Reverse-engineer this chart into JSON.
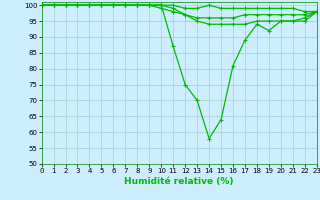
{
  "series": [
    {
      "x": [
        0,
        1,
        2,
        3,
        4,
        5,
        6,
        7,
        8,
        9,
        10,
        11,
        12,
        13,
        14,
        15,
        16,
        17,
        18,
        19,
        20,
        21,
        22,
        23
      ],
      "y": [
        100,
        100,
        100,
        100,
        100,
        100,
        100,
        100,
        100,
        100,
        100,
        100,
        99,
        99,
        100,
        99,
        99,
        99,
        99,
        99,
        99,
        99,
        98,
        98
      ]
    },
    {
      "x": [
        0,
        1,
        2,
        3,
        4,
        5,
        6,
        7,
        8,
        9,
        10,
        11,
        12,
        13,
        14,
        15,
        16,
        17,
        18,
        19,
        20,
        21,
        22,
        23
      ],
      "y": [
        100,
        100,
        100,
        100,
        100,
        100,
        100,
        100,
        100,
        100,
        99,
        98,
        97,
        96,
        96,
        96,
        96,
        97,
        97,
        97,
        97,
        97,
        97,
        98
      ]
    },
    {
      "x": [
        0,
        1,
        2,
        3,
        4,
        5,
        6,
        7,
        8,
        9,
        10,
        11,
        12,
        13,
        14,
        15,
        16,
        17,
        18,
        19,
        20,
        21,
        22,
        23
      ],
      "y": [
        100,
        100,
        100,
        100,
        100,
        100,
        100,
        100,
        100,
        100,
        100,
        87,
        75,
        70,
        58,
        64,
        81,
        89,
        94,
        92,
        95,
        95,
        96,
        98
      ]
    },
    {
      "x": [
        0,
        1,
        2,
        3,
        4,
        5,
        6,
        7,
        8,
        9,
        10,
        11,
        12,
        13,
        14,
        15,
        16,
        17,
        18,
        19,
        20,
        21,
        22,
        23
      ],
      "y": [
        100,
        100,
        100,
        100,
        100,
        100,
        100,
        100,
        100,
        100,
        100,
        99,
        97,
        95,
        94,
        94,
        94,
        94,
        95,
        95,
        95,
        95,
        95,
        98
      ]
    }
  ],
  "xlim": [
    0,
    23
  ],
  "ylim": [
    50,
    101
  ],
  "yticks": [
    50,
    55,
    60,
    65,
    70,
    75,
    80,
    85,
    90,
    95,
    100
  ],
  "xticks": [
    0,
    1,
    2,
    3,
    4,
    5,
    6,
    7,
    8,
    9,
    10,
    11,
    12,
    13,
    14,
    15,
    16,
    17,
    18,
    19,
    20,
    21,
    22,
    23
  ],
  "xlabel": "Humidité relative (%)",
  "bg_color": "#cceeff",
  "grid_color": "#aacccc",
  "line_color": "#00bb00",
  "marker": "+",
  "marker_size": 3,
  "lw": 0.9,
  "tick_fontsize": 5.0,
  "xlabel_fontsize": 6.5
}
